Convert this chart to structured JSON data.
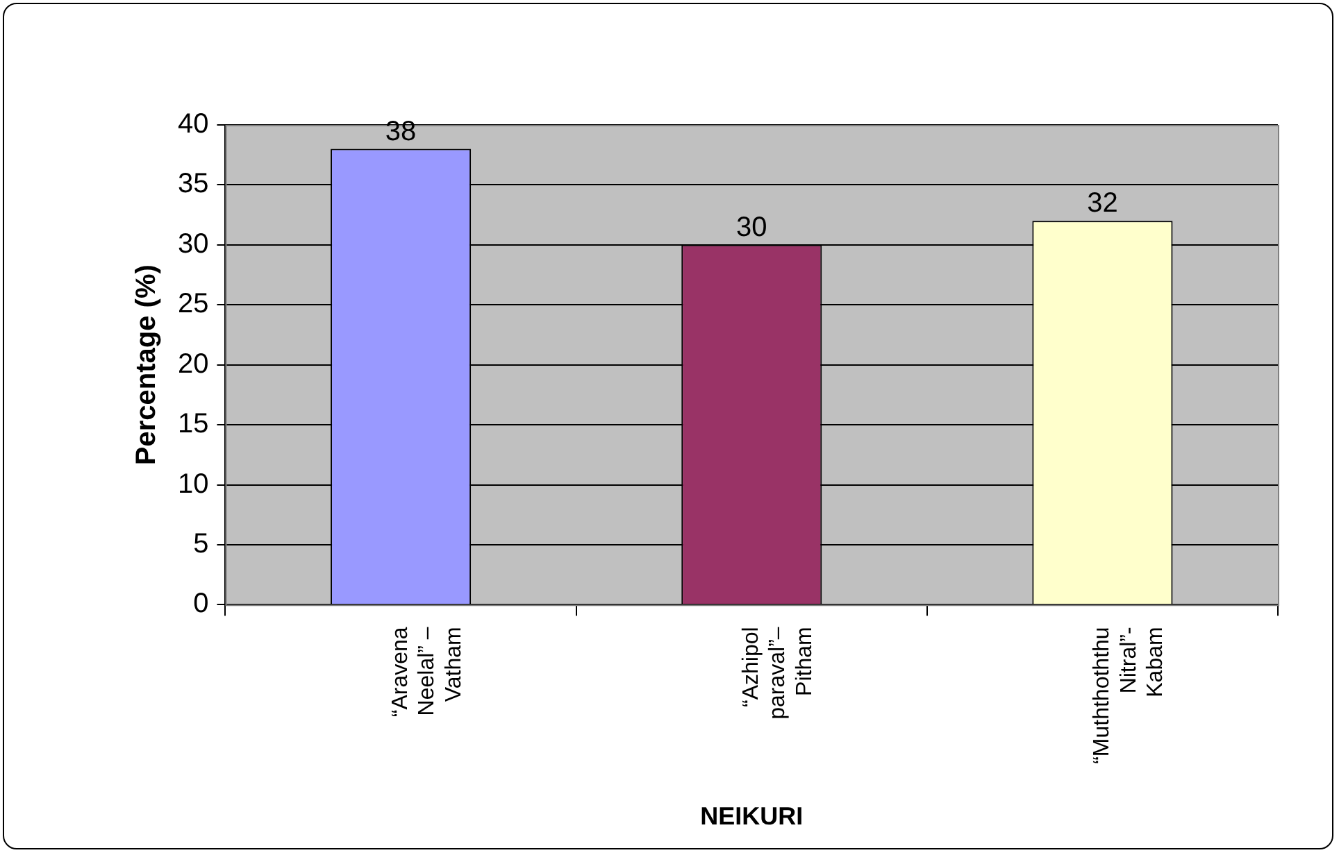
{
  "chart_data": {
    "type": "bar",
    "xlabel": "NEIKURI",
    "ylabel": "Percentage (%)",
    "categories": [
      "“Aravena Neelal” – Vatham",
      "“Azhipol paraval”– Pitham",
      "“Muththoththu Nitral”- Kabam"
    ],
    "values": [
      38,
      30,
      32
    ],
    "colors": [
      "#9999ff",
      "#993366",
      "#ffffcc"
    ],
    "ylim": [
      0,
      40
    ],
    "yticks": [
      0,
      5,
      10,
      15,
      20,
      25,
      30,
      35,
      40
    ],
    "grid": "y",
    "data_labels": true,
    "legend": false
  }
}
